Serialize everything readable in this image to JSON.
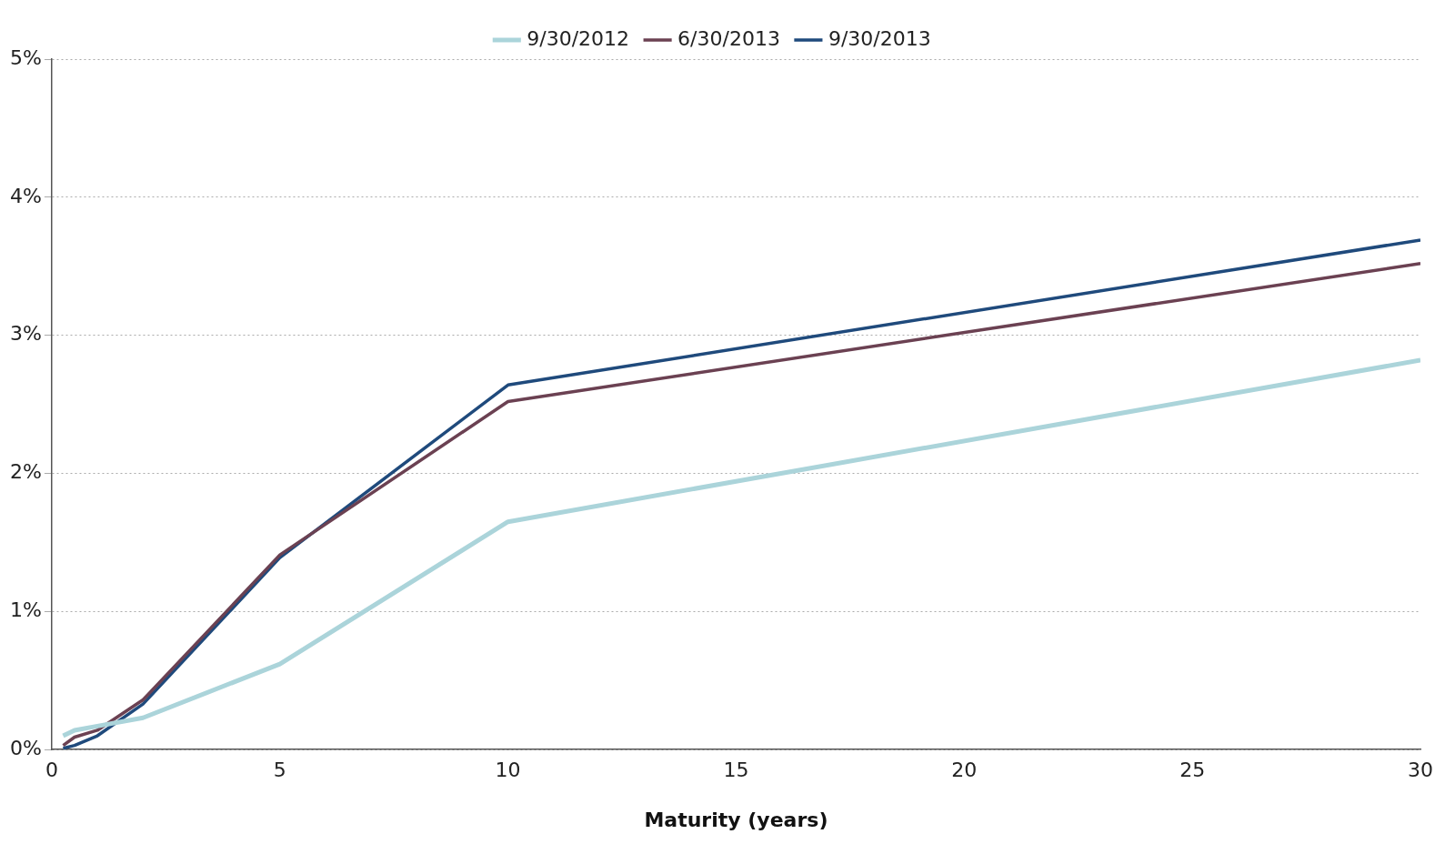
{
  "chart_data": {
    "type": "line",
    "xlabel": "Maturity (years)",
    "x": [
      0.25,
      0.5,
      1,
      2,
      5,
      10,
      30
    ],
    "series": [
      {
        "name": "9/30/2012",
        "color": "#abd4da",
        "values": [
          0.1,
          0.14,
          0.17,
          0.23,
          0.62,
          1.65,
          2.82
        ]
      },
      {
        "name": "6/30/2013",
        "color": "#6b4152",
        "values": [
          0.03,
          0.09,
          0.14,
          0.36,
          1.41,
          2.52,
          3.52
        ]
      },
      {
        "name": "9/30/2013",
        "color": "#1f4a7c",
        "values": [
          0.01,
          0.03,
          0.1,
          0.33,
          1.39,
          2.64,
          3.69
        ]
      }
    ],
    "xlim": [
      0,
      30
    ],
    "xticks": [
      0,
      5,
      10,
      15,
      20,
      25,
      30
    ],
    "ylim": [
      0,
      5
    ],
    "yticks": [
      {
        "value": 0,
        "label": "0%"
      },
      {
        "value": 1,
        "label": "1%"
      },
      {
        "value": 2,
        "label": "2%"
      },
      {
        "value": 3,
        "label": "3%"
      },
      {
        "value": 4,
        "label": "4%"
      },
      {
        "value": 5,
        "label": "5%"
      }
    ],
    "grid": "y",
    "legend": "top",
    "marker": "none",
    "line_style": "solid"
  }
}
